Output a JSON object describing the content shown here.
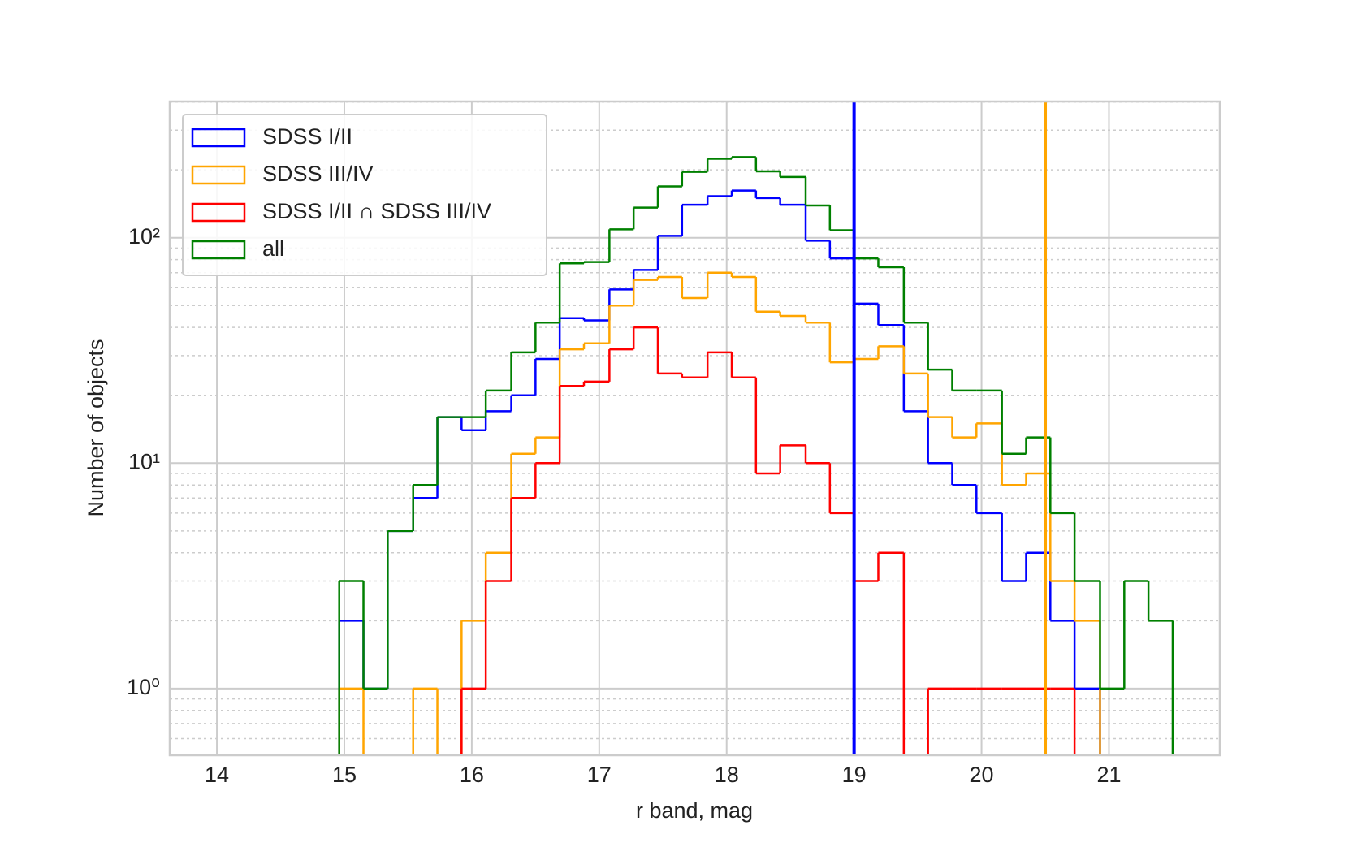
{
  "chart_data": {
    "type": "histogram",
    "xlabel": "r band, mag",
    "ylabel": "Number of objects",
    "bins": [
      14.96,
      15.15,
      15.34,
      15.54,
      15.73,
      15.92,
      16.11,
      16.31,
      16.5,
      16.69,
      16.88,
      17.08,
      17.27,
      17.46,
      17.65,
      17.85,
      18.04,
      18.23,
      18.42,
      18.62,
      18.81,
      19.0,
      19.19,
      19.39,
      19.58,
      19.77,
      19.96,
      20.16,
      20.35,
      20.54,
      20.73,
      20.93,
      21.12,
      21.31,
      21.5
    ],
    "series": [
      {
        "name": "SDSS I/II",
        "color": "#0000ff",
        "values": [
          2,
          1,
          5,
          7,
          16,
          14,
          17,
          20,
          29,
          44,
          43,
          59,
          72,
          102,
          140,
          153,
          162,
          150,
          140,
          97,
          81,
          51,
          41,
          17,
          10,
          8,
          6,
          3,
          4,
          2,
          1,
          0,
          0,
          0
        ]
      },
      {
        "name": "SDSS III/IV",
        "color": "#ffa500",
        "values": [
          1,
          0,
          0,
          1,
          0,
          2,
          4,
          11,
          13,
          32,
          34,
          50,
          65,
          67,
          54,
          70,
          67,
          47,
          45,
          42,
          28,
          29,
          33,
          25,
          16,
          13,
          15,
          8,
          9,
          3,
          2,
          0,
          0,
          0
        ]
      },
      {
        "name": "SDSS I/II ∩ SDSS III/IV",
        "color": "#ff0000",
        "values": [
          0,
          0,
          0,
          0,
          0,
          1,
          3,
          7,
          10,
          22,
          23,
          32,
          40,
          25,
          24,
          31,
          24,
          9,
          12,
          10,
          6,
          3,
          4,
          0,
          1,
          1,
          1,
          1,
          1,
          1,
          0,
          0,
          0,
          0
        ]
      },
      {
        "name": "all",
        "color": "#008000",
        "values": [
          3,
          1,
          5,
          8,
          16,
          16,
          21,
          31,
          42,
          77,
          78,
          109,
          136,
          169,
          196,
          224,
          228,
          197,
          186,
          139,
          108,
          81,
          74,
          42,
          26,
          21,
          21,
          11,
          13,
          6,
          3,
          1,
          3,
          2
        ]
      }
    ],
    "vlines": [
      {
        "value": 19.0,
        "color": "#0000ff"
      },
      {
        "value": 20.5,
        "color": "#ffa500"
      }
    ],
    "xlim": [
      13.63,
      21.87
    ],
    "xticks": [
      14,
      15,
      16,
      17,
      18,
      19,
      20,
      21
    ],
    "ylim": [
      0.506,
      402
    ],
    "log_y": true,
    "yticks": [
      {
        "value": 1,
        "label": "10⁰"
      },
      {
        "value": 10,
        "label": "10¹"
      },
      {
        "value": 100,
        "label": "10²"
      }
    ],
    "yminorticks": [
      0.6,
      0.7,
      0.8,
      0.9,
      2,
      3,
      4,
      5,
      6,
      7,
      8,
      9,
      20,
      30,
      40,
      50,
      60,
      70,
      80,
      90,
      200,
      300,
      400
    ],
    "grid": true,
    "legend": "upper left"
  }
}
